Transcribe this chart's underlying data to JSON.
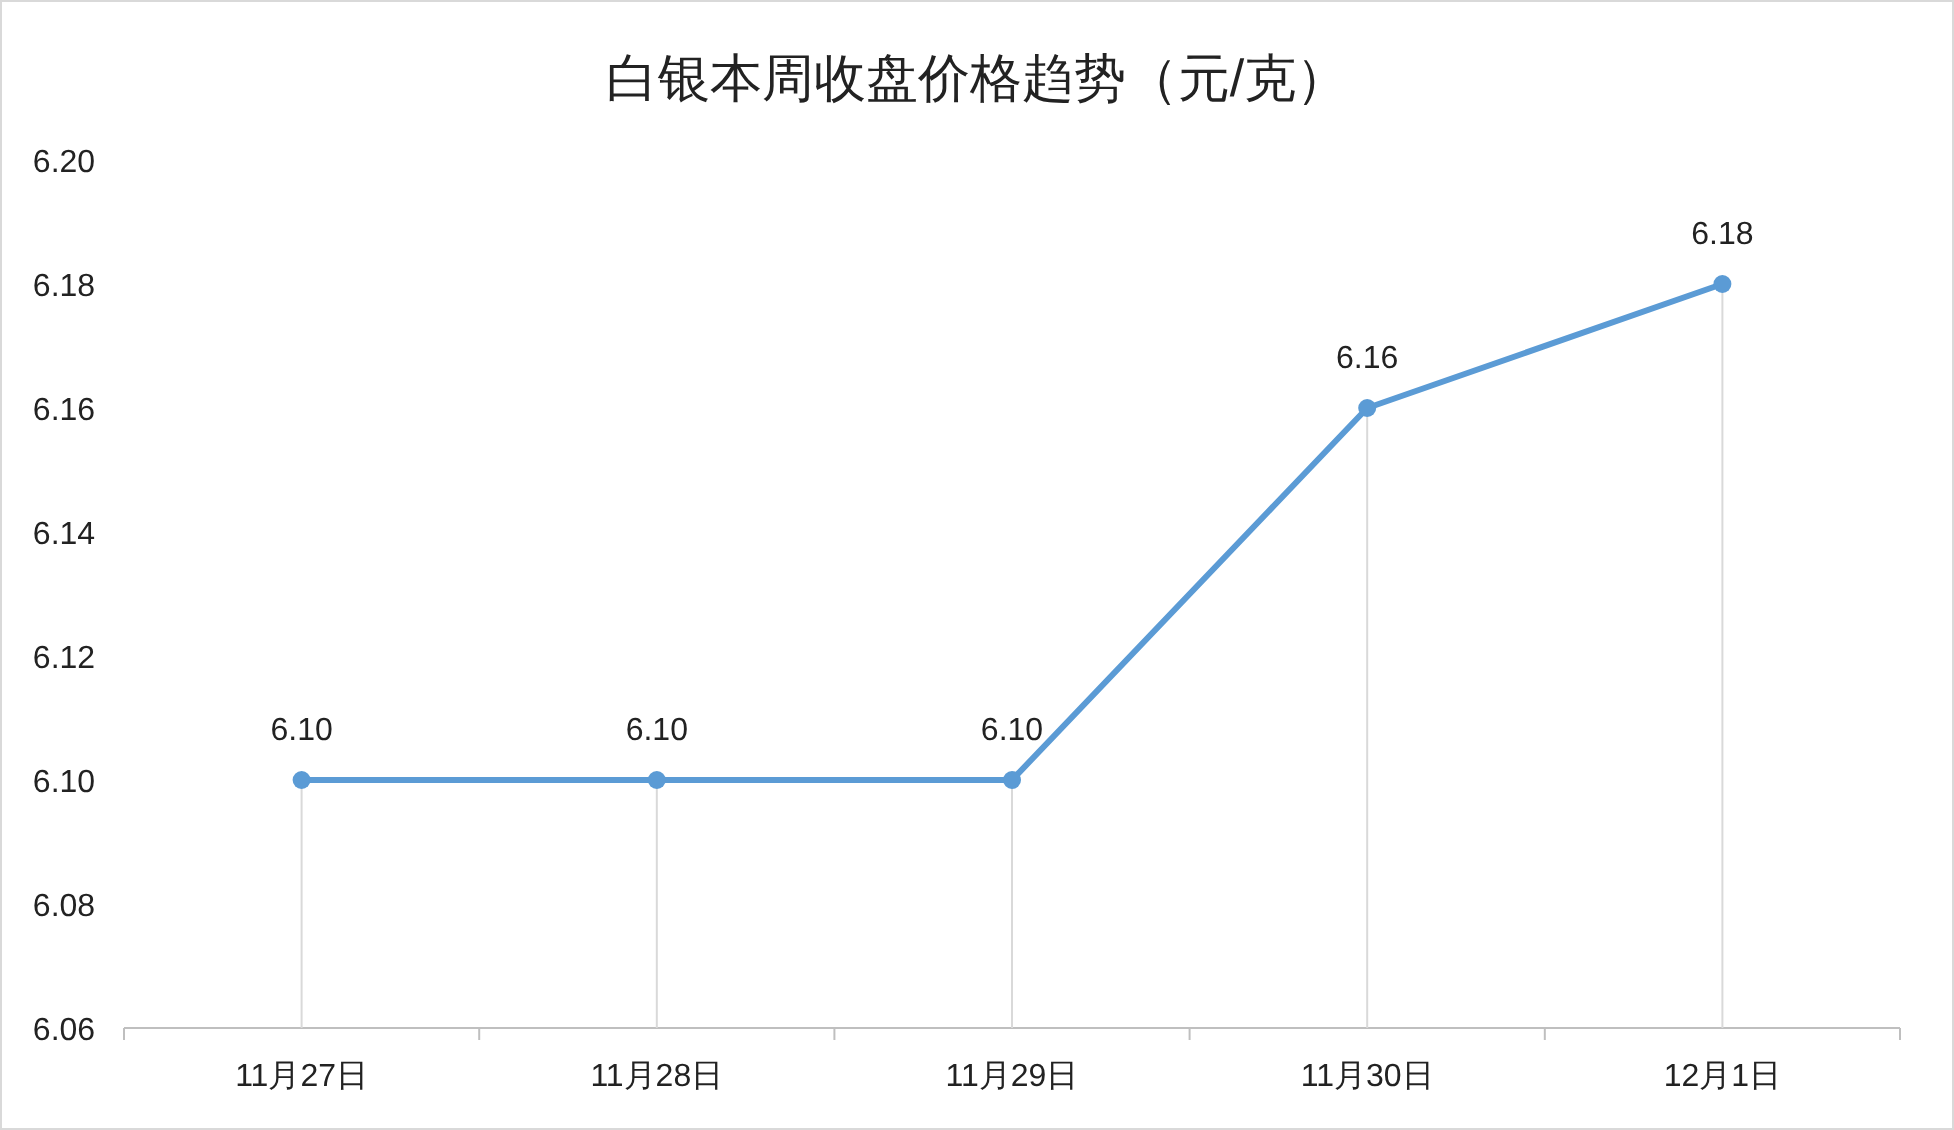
{
  "chart_data": {
    "type": "line",
    "title": "白银本周收盘价格趋势（元/克）",
    "categories": [
      "11月27日",
      "11月28日",
      "11月29日",
      "11月30日",
      "12月1日"
    ],
    "series": [
      {
        "color": "#5b9bd5",
        "values": [
          6.1,
          6.1,
          6.1,
          6.16,
          6.18
        ],
        "value_labels": [
          "6.10",
          "6.10",
          "6.10",
          "6.16",
          "6.18"
        ]
      }
    ],
    "ylim": [
      6.06,
      6.2
    ],
    "yticks": [
      {
        "value": 6.06,
        "label": "6.06"
      },
      {
        "value": 6.08,
        "label": "6.08"
      },
      {
        "value": 6.1,
        "label": "6.10"
      },
      {
        "value": 6.12,
        "label": "6.12"
      },
      {
        "value": 6.14,
        "label": "6.14"
      },
      {
        "value": 6.16,
        "label": "6.16"
      },
      {
        "value": 6.18,
        "label": "6.18"
      },
      {
        "value": 6.2,
        "label": "6.20"
      }
    ],
    "marker": "circle",
    "line_style": "solid",
    "grid": "x"
  }
}
